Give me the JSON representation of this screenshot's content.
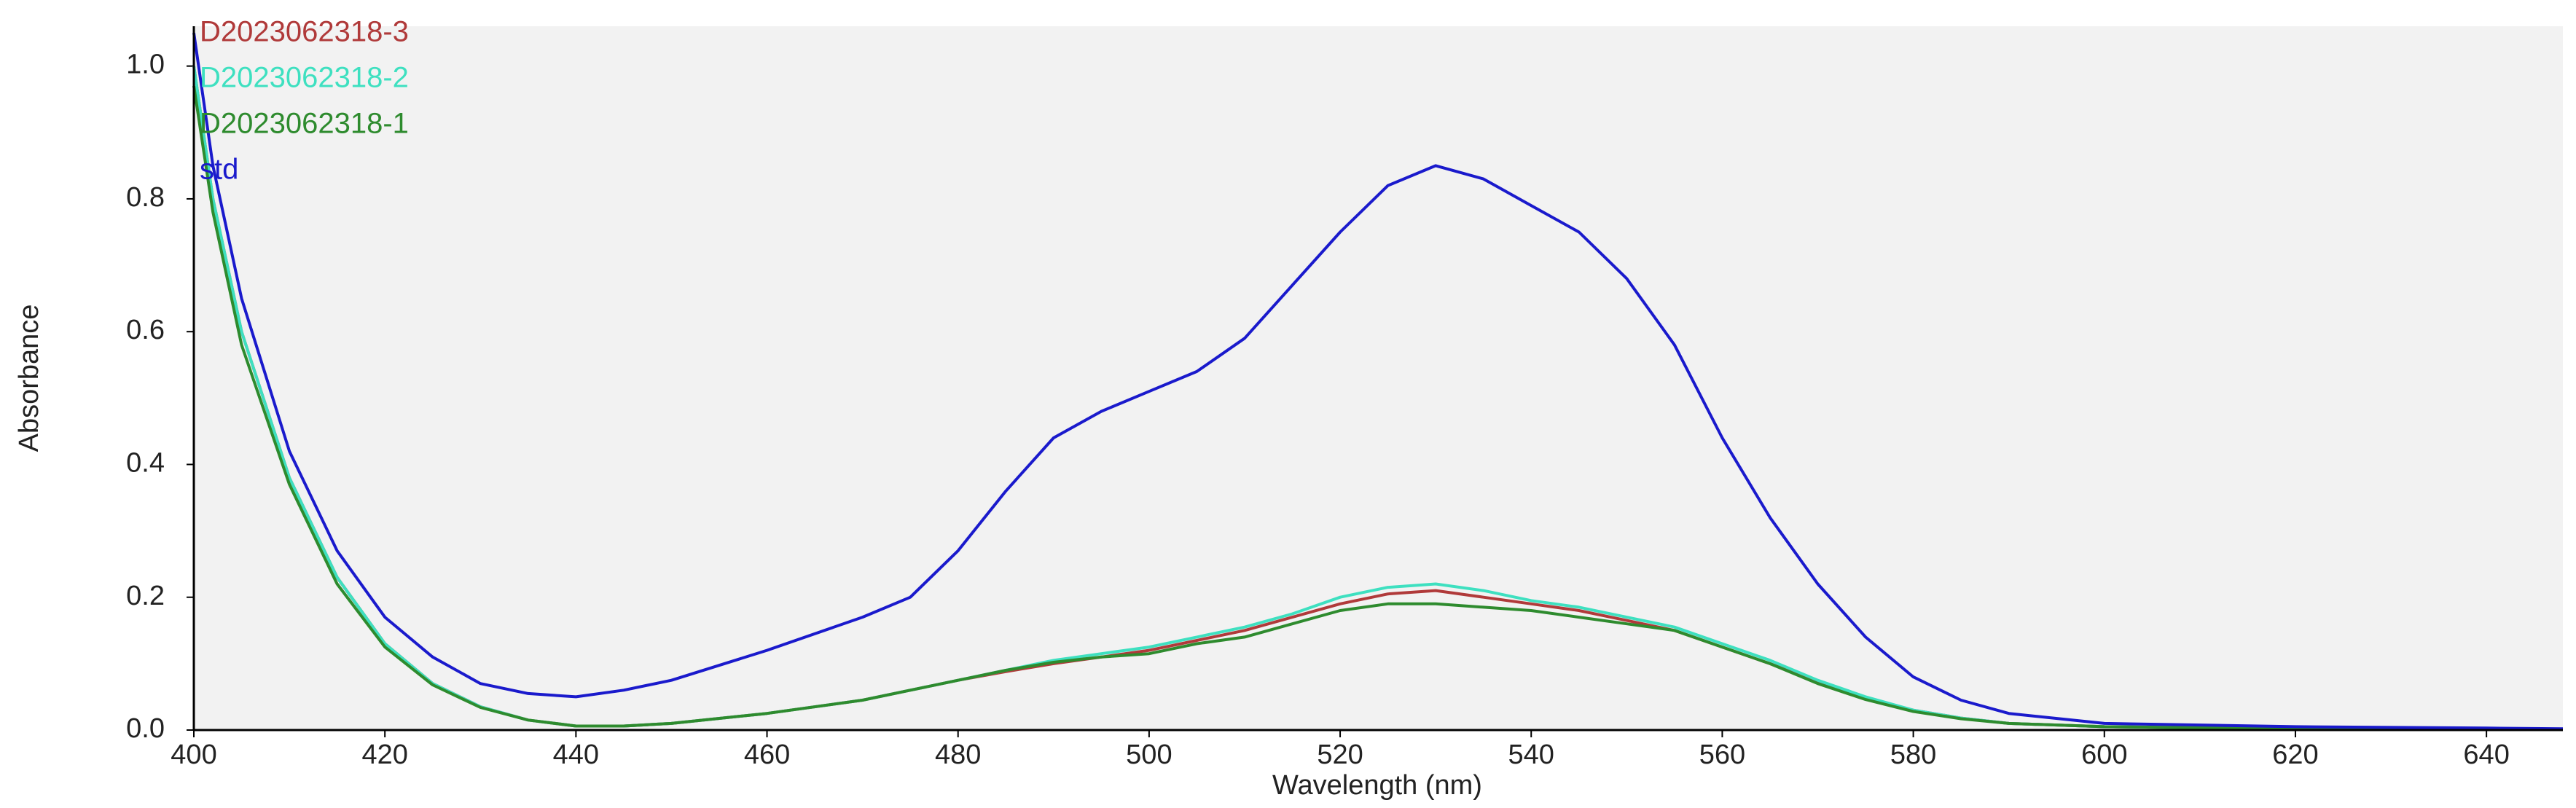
{
  "chart_data": {
    "type": "line",
    "x_label": "Wavelength (nm)",
    "y_label": "Absorbance",
    "xlim": [
      400,
      648
    ],
    "ylim": [
      0,
      1.06
    ],
    "xticks": [
      400,
      420,
      440,
      460,
      480,
      500,
      520,
      540,
      560,
      580,
      600,
      620,
      640
    ],
    "yticks": [
      {
        "value": 0,
        "label": "0.0"
      },
      0.2,
      0.4,
      0.6,
      0.8,
      {
        "value": 1,
        "label": "1.0"
      }
    ],
    "background": "#f2f2f2",
    "legend": "top-left",
    "x": [
      400,
      402,
      405,
      410,
      415,
      420,
      425,
      430,
      435,
      440,
      445,
      450,
      460,
      470,
      475,
      480,
      485,
      490,
      495,
      500,
      505,
      510,
      515,
      520,
      525,
      530,
      535,
      540,
      545,
      550,
      555,
      560,
      565,
      570,
      575,
      580,
      585,
      590,
      600,
      620,
      640,
      648
    ],
    "series": [
      {
        "name": "D2023062318-3",
        "color": "#b03a3a",
        "values": [
          1.0,
          0.8,
          0.6,
          0.38,
          0.23,
          0.13,
          0.07,
          0.035,
          0.015,
          0.006,
          0.006,
          0.01,
          0.025,
          0.045,
          0.06,
          0.075,
          0.088,
          0.1,
          0.11,
          0.12,
          0.135,
          0.15,
          0.17,
          0.19,
          0.205,
          0.21,
          0.2,
          0.19,
          0.18,
          0.165,
          0.15,
          0.125,
          0.1,
          0.072,
          0.048,
          0.03,
          0.018,
          0.01,
          0.005,
          0.002,
          0.001,
          0.001
        ]
      },
      {
        "name": "D2023062318-2",
        "color": "#3ee0c0",
        "values": [
          1.0,
          0.8,
          0.6,
          0.38,
          0.23,
          0.13,
          0.07,
          0.035,
          0.015,
          0.006,
          0.006,
          0.01,
          0.025,
          0.045,
          0.06,
          0.075,
          0.09,
          0.105,
          0.115,
          0.125,
          0.14,
          0.155,
          0.175,
          0.2,
          0.215,
          0.22,
          0.21,
          0.195,
          0.185,
          0.17,
          0.155,
          0.13,
          0.105,
          0.075,
          0.05,
          0.03,
          0.018,
          0.01,
          0.005,
          0.002,
          0.001,
          0.001
        ]
      },
      {
        "name": "D2023062318-1",
        "color": "#2e8b2e",
        "values": [
          0.97,
          0.78,
          0.58,
          0.37,
          0.22,
          0.125,
          0.068,
          0.034,
          0.015,
          0.006,
          0.006,
          0.01,
          0.025,
          0.045,
          0.06,
          0.075,
          0.09,
          0.102,
          0.11,
          0.115,
          0.13,
          0.14,
          0.16,
          0.18,
          0.19,
          0.19,
          0.185,
          0.18,
          0.17,
          0.16,
          0.15,
          0.125,
          0.1,
          0.07,
          0.046,
          0.028,
          0.017,
          0.01,
          0.005,
          0.002,
          0.001,
          0.001
        ]
      },
      {
        "name": "std",
        "color": "#1a1acc",
        "values": [
          1.05,
          0.85,
          0.65,
          0.42,
          0.27,
          0.17,
          0.11,
          0.07,
          0.055,
          0.05,
          0.06,
          0.075,
          0.12,
          0.17,
          0.2,
          0.27,
          0.36,
          0.44,
          0.48,
          0.51,
          0.54,
          0.59,
          0.67,
          0.75,
          0.82,
          0.85,
          0.83,
          0.79,
          0.75,
          0.68,
          0.58,
          0.44,
          0.32,
          0.22,
          0.14,
          0.08,
          0.045,
          0.025,
          0.01,
          0.005,
          0.003,
          0.002
        ]
      }
    ]
  }
}
